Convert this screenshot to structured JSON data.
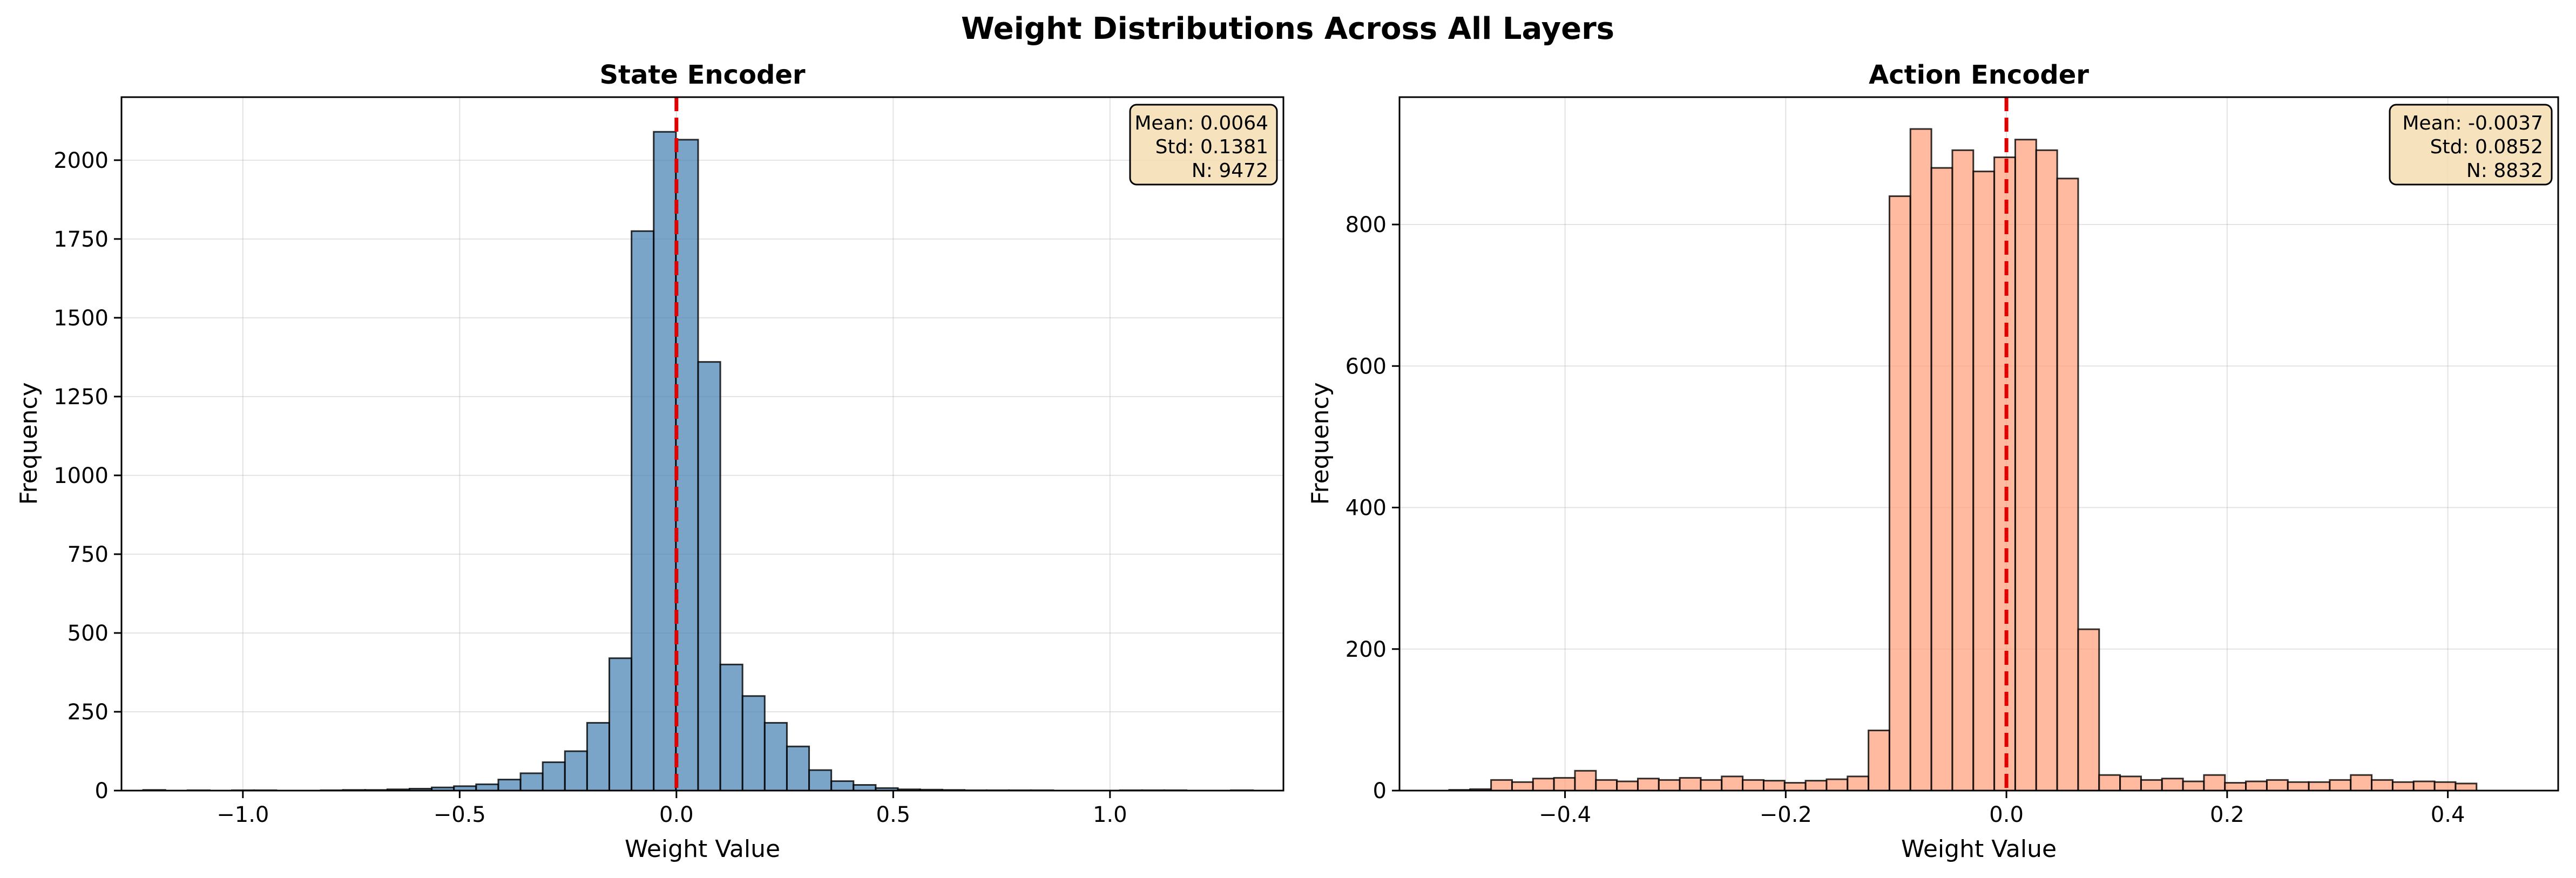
{
  "figure": {
    "title": "Weight Distributions Across All Layers"
  },
  "chart_data": [
    {
      "type": "bar",
      "title": "State Encoder",
      "xlabel": "Weight Value",
      "ylabel": "Frequency",
      "color": "#4682b4",
      "mean_line_color": "#e00000",
      "stats_box_color": "#f5deb3",
      "grid": true,
      "xlim": [
        -1.28,
        1.4
      ],
      "ylim": [
        0,
        2200
      ],
      "xticks": [
        -1.0,
        -0.5,
        0.0,
        0.5,
        1.0
      ],
      "xtick_labels": [
        "−1.0",
        "−0.5",
        "0.0",
        "0.5",
        "1.0"
      ],
      "yticks": [
        0,
        250,
        500,
        750,
        1000,
        1250,
        1500,
        1750,
        2000
      ],
      "yticks_labels": [
        "0",
        "250",
        "500",
        "750",
        "1000",
        "1250",
        "1500",
        "1750",
        "2000"
      ],
      "bin_start": -1.23,
      "bin_width": 0.0512,
      "values": [
        2,
        0,
        1,
        0,
        1,
        1,
        0,
        0,
        1,
        2,
        2,
        4,
        6,
        10,
        14,
        20,
        35,
        55,
        90,
        125,
        215,
        420,
        1775,
        2090,
        2065,
        1360,
        400,
        300,
        215,
        140,
        65,
        30,
        18,
        8,
        4,
        3,
        2,
        1,
        1,
        1,
        1,
        0,
        0,
        0,
        1,
        1,
        1,
        0,
        0,
        1
      ],
      "mean_line_x": 0.0,
      "stats": {
        "mean": "Mean: 0.0064",
        "std": "Std: 0.1381",
        "n": "N: 9472"
      },
      "legend": "top-right"
    },
    {
      "type": "bar",
      "title": "Action Encoder",
      "xlabel": "Weight Value",
      "ylabel": "Frequency",
      "color": "#ffa07a",
      "mean_line_color": "#e00000",
      "stats_box_color": "#f5deb3",
      "grid": true,
      "xlim": [
        -0.55,
        0.5
      ],
      "ylim": [
        0,
        980
      ],
      "xticks": [
        -0.4,
        -0.2,
        0.0,
        0.2,
        0.4
      ],
      "xtick_labels": [
        "−0.4",
        "−0.2",
        "0.0",
        "0.2",
        "0.4"
      ],
      "yticks": [
        0,
        200,
        400,
        600,
        800
      ],
      "yticks_labels": [
        "0",
        "200",
        "400",
        "600",
        "800"
      ],
      "bin_start": -0.505,
      "bin_width": 0.019,
      "values": [
        1,
        2,
        15,
        12,
        17,
        18,
        28,
        15,
        13,
        17,
        15,
        18,
        15,
        20,
        15,
        14,
        11,
        14,
        16,
        20,
        85,
        840,
        935,
        880,
        905,
        875,
        895,
        920,
        905,
        865,
        228,
        22,
        20,
        15,
        17,
        13,
        22,
        11,
        13,
        15,
        12,
        12,
        15,
        22,
        15,
        12,
        13,
        12,
        10
      ],
      "mean_line_x": 0.0,
      "stats": {
        "mean": "Mean: -0.0037",
        "std": "Std: 0.0852",
        "n": "N: 8832"
      },
      "legend": "top-right"
    }
  ]
}
